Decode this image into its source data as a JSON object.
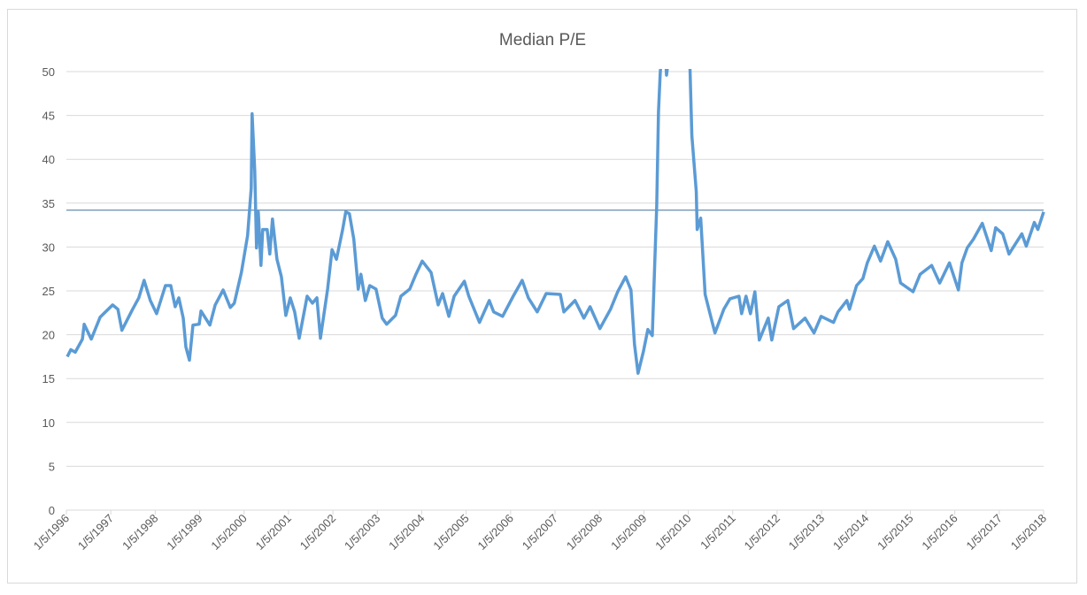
{
  "chart_data": {
    "type": "line",
    "title": "Median P/E",
    "xlabel": "",
    "ylabel": "",
    "ylim": [
      0,
      50
    ],
    "yticks": [
      "0",
      "5",
      "10",
      "15",
      "20",
      "25",
      "30",
      "35",
      "40",
      "45",
      "50"
    ],
    "xlim": [
      1996.0,
      2018.0
    ],
    "xtick_labels": [
      "1/5/1996",
      "1/5/1997",
      "1/5/1998",
      "1/5/1999",
      "1/5/2000",
      "1/5/2001",
      "1/5/2002",
      "1/5/2003",
      "1/5/2004",
      "1/5/2005",
      "1/5/2006",
      "1/5/2007",
      "1/5/2008",
      "1/5/2009",
      "1/5/2010",
      "1/5/2011",
      "1/5/2012",
      "1/5/2013",
      "1/5/2014",
      "1/5/2015",
      "1/5/2016",
      "1/5/2017",
      "1/5/2018"
    ],
    "grid": true,
    "legend": "none",
    "reference_line": 34.2,
    "colors": {
      "series": "#5b9bd5",
      "reference": "#41719c",
      "grid": "#d9d9d9"
    },
    "series": [
      {
        "name": "Median P/E",
        "points": [
          [
            1996.02,
            17.5
          ],
          [
            1996.1,
            18.3
          ],
          [
            1996.2,
            18.0
          ],
          [
            1996.36,
            19.5
          ],
          [
            1996.4,
            21.2
          ],
          [
            1996.56,
            19.5
          ],
          [
            1996.76,
            22.0
          ],
          [
            1997.04,
            23.4
          ],
          [
            1997.16,
            22.9
          ],
          [
            1997.25,
            20.5
          ],
          [
            1997.49,
            22.9
          ],
          [
            1997.63,
            24.2
          ],
          [
            1997.75,
            26.2
          ],
          [
            1997.89,
            23.9
          ],
          [
            1998.03,
            22.4
          ],
          [
            1998.23,
            25.6
          ],
          [
            1998.35,
            25.6
          ],
          [
            1998.45,
            23.2
          ],
          [
            1998.53,
            24.2
          ],
          [
            1998.63,
            21.9
          ],
          [
            1998.69,
            18.6
          ],
          [
            1998.77,
            17.1
          ],
          [
            1998.85,
            21.1
          ],
          [
            1998.99,
            21.2
          ],
          [
            1999.03,
            22.7
          ],
          [
            1999.23,
            21.1
          ],
          [
            1999.35,
            23.4
          ],
          [
            1999.53,
            25.1
          ],
          [
            1999.69,
            23.1
          ],
          [
            1999.78,
            23.6
          ],
          [
            1999.94,
            27.1
          ],
          [
            2000.08,
            31.3
          ],
          [
            2000.16,
            36.7
          ],
          [
            2000.18,
            45.2
          ],
          [
            2000.24,
            38.7
          ],
          [
            2000.28,
            29.9
          ],
          [
            2000.32,
            34.0
          ],
          [
            2000.38,
            27.9
          ],
          [
            2000.42,
            32.0
          ],
          [
            2000.52,
            32.0
          ],
          [
            2000.58,
            29.2
          ],
          [
            2000.64,
            33.2
          ],
          [
            2000.74,
            28.6
          ],
          [
            2000.84,
            26.6
          ],
          [
            2000.94,
            22.2
          ],
          [
            2001.04,
            24.2
          ],
          [
            2001.14,
            22.6
          ],
          [
            2001.24,
            19.6
          ],
          [
            2001.42,
            24.4
          ],
          [
            2001.54,
            23.6
          ],
          [
            2001.64,
            24.2
          ],
          [
            2001.72,
            19.6
          ],
          [
            2001.88,
            25.2
          ],
          [
            2001.98,
            29.7
          ],
          [
            2002.08,
            28.6
          ],
          [
            2002.22,
            32.0
          ],
          [
            2002.29,
            34.0
          ],
          [
            2002.37,
            33.8
          ],
          [
            2002.47,
            30.9
          ],
          [
            2002.57,
            25.2
          ],
          [
            2002.63,
            26.9
          ],
          [
            2002.73,
            23.9
          ],
          [
            2002.83,
            25.6
          ],
          [
            2002.97,
            25.2
          ],
          [
            2003.11,
            21.9
          ],
          [
            2003.21,
            21.2
          ],
          [
            2003.41,
            22.2
          ],
          [
            2003.53,
            24.4
          ],
          [
            2003.73,
            25.2
          ],
          [
            2003.87,
            26.9
          ],
          [
            2004.01,
            28.4
          ],
          [
            2004.21,
            27.1
          ],
          [
            2004.37,
            23.4
          ],
          [
            2004.47,
            24.7
          ],
          [
            2004.61,
            22.1
          ],
          [
            2004.73,
            24.4
          ],
          [
            2004.96,
            26.1
          ],
          [
            2005.06,
            24.4
          ],
          [
            2005.3,
            21.4
          ],
          [
            2005.52,
            23.9
          ],
          [
            2005.62,
            22.6
          ],
          [
            2005.82,
            22.1
          ],
          [
            2006.06,
            24.4
          ],
          [
            2006.26,
            26.2
          ],
          [
            2006.4,
            24.2
          ],
          [
            2006.6,
            22.6
          ],
          [
            2006.8,
            24.7
          ],
          [
            2007.12,
            24.6
          ],
          [
            2007.2,
            22.6
          ],
          [
            2007.45,
            23.9
          ],
          [
            2007.65,
            21.9
          ],
          [
            2007.79,
            23.2
          ],
          [
            2008.01,
            20.7
          ],
          [
            2008.25,
            22.9
          ],
          [
            2008.41,
            24.9
          ],
          [
            2008.59,
            26.6
          ],
          [
            2008.71,
            25.1
          ],
          [
            2008.79,
            18.9
          ],
          [
            2008.87,
            15.6
          ],
          [
            2008.99,
            18.1
          ],
          [
            2009.09,
            20.6
          ],
          [
            2009.19,
            19.9
          ],
          [
            2009.29,
            34.7
          ],
          [
            2009.33,
            45.4
          ],
          [
            2009.37,
            49.9
          ],
          [
            2009.45,
            55.0
          ],
          [
            2009.51,
            49.6
          ],
          [
            2009.75,
            60.0
          ],
          [
            2010.01,
            55.0
          ],
          [
            2010.04,
            50.0
          ],
          [
            2010.08,
            42.7
          ],
          [
            2010.18,
            36.3
          ],
          [
            2010.2,
            32.0
          ],
          [
            2010.28,
            33.3
          ],
          [
            2010.38,
            24.6
          ],
          [
            2010.48,
            22.6
          ],
          [
            2010.6,
            20.2
          ],
          [
            2010.8,
            22.9
          ],
          [
            2010.94,
            24.1
          ],
          [
            2011.14,
            24.4
          ],
          [
            2011.2,
            22.4
          ],
          [
            2011.3,
            24.4
          ],
          [
            2011.4,
            22.4
          ],
          [
            2011.5,
            24.9
          ],
          [
            2011.6,
            19.4
          ],
          [
            2011.8,
            21.9
          ],
          [
            2011.88,
            19.4
          ],
          [
            2012.04,
            23.2
          ],
          [
            2012.24,
            23.9
          ],
          [
            2012.37,
            20.7
          ],
          [
            2012.63,
            21.9
          ],
          [
            2012.83,
            20.2
          ],
          [
            2012.99,
            22.1
          ],
          [
            2013.27,
            21.4
          ],
          [
            2013.37,
            22.6
          ],
          [
            2013.57,
            23.9
          ],
          [
            2013.63,
            22.9
          ],
          [
            2013.79,
            25.6
          ],
          [
            2013.93,
            26.4
          ],
          [
            2014.03,
            28.2
          ],
          [
            2014.19,
            30.1
          ],
          [
            2014.33,
            28.4
          ],
          [
            2014.49,
            30.6
          ],
          [
            2014.67,
            28.6
          ],
          [
            2014.78,
            25.9
          ],
          [
            2015.06,
            24.9
          ],
          [
            2015.22,
            26.9
          ],
          [
            2015.48,
            27.9
          ],
          [
            2015.66,
            25.9
          ],
          [
            2015.88,
            28.2
          ],
          [
            2016.08,
            25.1
          ],
          [
            2016.16,
            28.2
          ],
          [
            2016.28,
            29.9
          ],
          [
            2016.42,
            30.9
          ],
          [
            2016.62,
            32.7
          ],
          [
            2016.82,
            29.6
          ],
          [
            2016.92,
            32.2
          ],
          [
            2017.08,
            31.5
          ],
          [
            2017.22,
            29.2
          ],
          [
            2017.51,
            31.5
          ],
          [
            2017.61,
            30.1
          ],
          [
            2017.79,
            32.8
          ],
          [
            2017.87,
            32.0
          ],
          [
            2018.0,
            34.0
          ]
        ]
      }
    ]
  }
}
